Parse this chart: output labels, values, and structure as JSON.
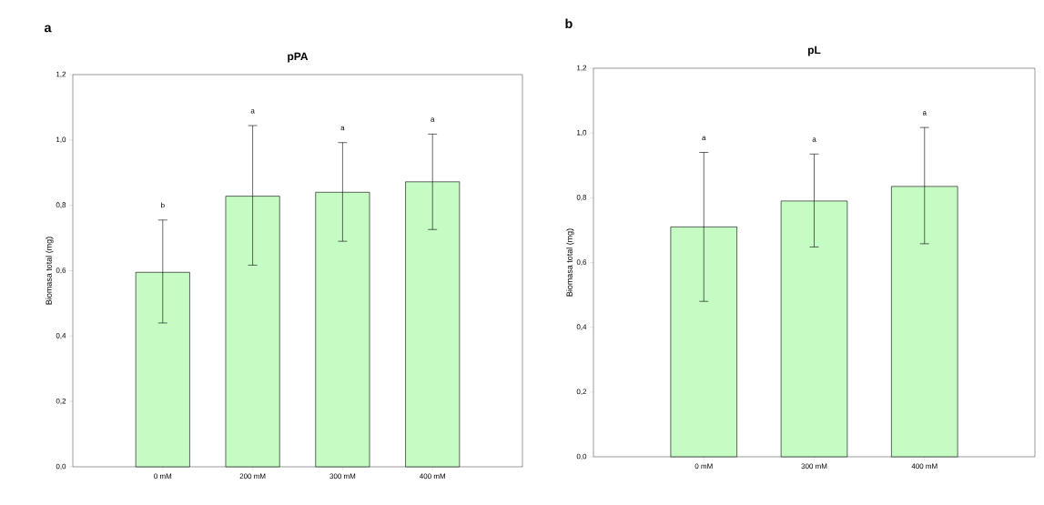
{
  "chart_data": [
    {
      "type": "bar",
      "title": "pPA",
      "ylabel": "Biomasa total (mg)",
      "categories": [
        "0 mM",
        "200 mM",
        "300 mM",
        "400 mM"
      ],
      "values": [
        0.595,
        0.828,
        0.84,
        0.872
      ],
      "color": "#c4fcc4",
      "errors": [
        [
          0.44,
          0.755
        ],
        [
          0.617,
          1.044
        ],
        [
          0.69,
          0.992
        ],
        [
          0.726,
          1.018
        ]
      ],
      "ylim": [
        0,
        1.2
      ],
      "yticks": [
        {
          "value": 0,
          "label": "0,0"
        },
        {
          "value": 0.2,
          "label": "0,2"
        },
        {
          "value": 0.4,
          "label": "0,4"
        },
        {
          "value": 0.6,
          "label": "0,6"
        },
        {
          "value": 0.8,
          "label": "0,8"
        },
        {
          "value": 1.0,
          "label": "1,0"
        },
        {
          "value": 1.2,
          "label": "1,2"
        }
      ],
      "grid": false,
      "annotations": [
        "a",
        "b",
        "a",
        "a",
        "a"
      ]
    },
    {
      "type": "bar",
      "title": "pL",
      "ylabel": "Biomasa total (mg)",
      "categories": [
        "0 mM",
        "300 mM",
        "400 mM"
      ],
      "values": [
        0.71,
        0.79,
        0.835
      ],
      "color": "#c4fcc4",
      "errors": [
        [
          0.48,
          0.94
        ],
        [
          0.648,
          0.935
        ],
        [
          0.658,
          1.017
        ]
      ],
      "ylim": [
        0,
        1.2
      ],
      "yticks": [
        {
          "value": 0,
          "label": "0,0"
        },
        {
          "value": 0.2,
          "label": "0,2"
        },
        {
          "value": 0.4,
          "label": "0,4"
        },
        {
          "value": 0.6,
          "label": "0,6"
        },
        {
          "value": 0.8,
          "label": "0,8"
        },
        {
          "value": 1.0,
          "label": "1,0"
        },
        {
          "value": 1.2,
          "label": "1,2"
        }
      ],
      "grid": false,
      "annotations": [
        "b",
        "a",
        "a",
        "a"
      ]
    }
  ]
}
